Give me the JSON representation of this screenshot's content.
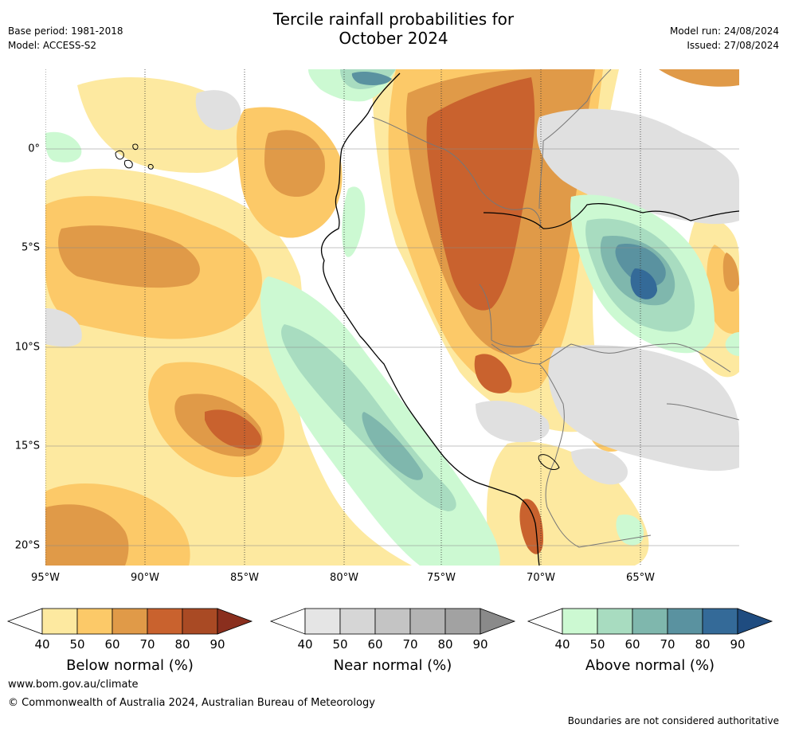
{
  "header": {
    "title_line1": "Tercile rainfall probabilities for",
    "title_line2": "October 2024",
    "base_period": "Base period: 1981-2018",
    "model": "Model: ACCESS-S2",
    "model_run": "Model run: 24/08/2024",
    "issued": "Issued: 27/08/2024"
  },
  "map": {
    "lon_range": [
      -95,
      -60.2
    ],
    "lat_range": [
      -21,
      4
    ],
    "x_ticks": [
      "95°W",
      "90°W",
      "85°W",
      "80°W",
      "75°W",
      "70°W",
      "65°W"
    ],
    "y_ticks": [
      "0°",
      "5°S",
      "10°S",
      "15°S",
      "20°S"
    ],
    "gridlines": true
  },
  "legends": [
    {
      "label": "Below normal (%)",
      "ticks": [
        "40",
        "50",
        "60",
        "70",
        "80",
        "90"
      ],
      "colors": [
        "#ffffff",
        "#fde9a0",
        "#fcc968",
        "#e09a48",
        "#c9622e",
        "#a94a24",
        "#8a2f1e"
      ]
    },
    {
      "label": "Near normal (%)",
      "ticks": [
        "40",
        "50",
        "60",
        "70",
        "80",
        "90"
      ],
      "colors": [
        "#ffffff",
        "#e5e5e5",
        "#d6d6d6",
        "#c4c4c4",
        "#b3b3b3",
        "#a2a2a2",
        "#8a8a8a"
      ]
    },
    {
      "label": "Above normal (%)",
      "ticks": [
        "40",
        "50",
        "60",
        "70",
        "80",
        "90"
      ],
      "colors": [
        "#ffffff",
        "#ccf9d2",
        "#a8dcc0",
        "#7fb7ad",
        "#5a92a0",
        "#346a98",
        "#1f4c80"
      ]
    }
  ],
  "footer": {
    "website": "www.bom.gov.au/climate",
    "copyright": "© Commonwealth of Australia 2024, Australian Bureau of Meteorology",
    "disclaimer": "Boundaries are not considered authoritative"
  },
  "colors": {
    "below_40": "#fde9a0",
    "below_50": "#fcc968",
    "below_60": "#e09a48",
    "below_70": "#c9622e",
    "near_50": "#e0e0e0",
    "above_40": "#ccf9d2",
    "above_50": "#a8dcc0",
    "above_60": "#7fb7ad",
    "above_70": "#5a92a0",
    "above_80": "#346a98"
  }
}
